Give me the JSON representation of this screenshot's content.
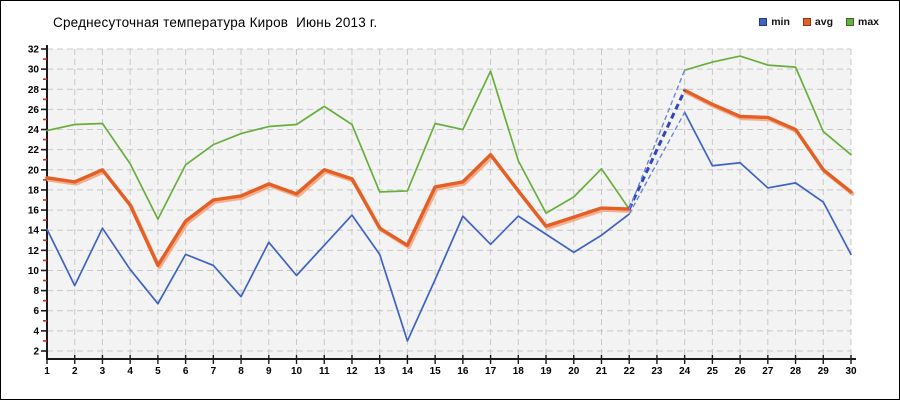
{
  "chart_data": {
    "type": "line",
    "title": "Среднесуточная температура Киров  Июнь 2013 г.",
    "xlabel": "",
    "ylabel": "",
    "x": [
      1,
      2,
      3,
      4,
      5,
      6,
      7,
      8,
      9,
      10,
      11,
      12,
      13,
      14,
      15,
      16,
      17,
      18,
      19,
      20,
      21,
      22,
      23,
      24,
      25,
      26,
      27,
      28,
      29,
      30
    ],
    "x_tick_labels": [
      "1",
      "2",
      "3",
      "4",
      "5",
      "6",
      "7",
      "8",
      "9",
      "10",
      "11",
      "12",
      "13",
      "14",
      "15",
      "16",
      "17",
      "18",
      "19",
      "20",
      "21",
      "22",
      "23",
      "24",
      "25",
      "26",
      "27",
      "28",
      "29",
      "30"
    ],
    "ylim": [
      2,
      32
    ],
    "y_tick_step": 2,
    "y_tick_labels": [
      "2",
      "4",
      "6",
      "8",
      "10",
      "12",
      "14",
      "16",
      "18",
      "20",
      "22",
      "24",
      "26",
      "28",
      "30",
      "32"
    ],
    "grid": true,
    "legend_position": "top-right",
    "missing_x": [
      23
    ],
    "gap_note": "day 23 has no data; gap bridged by blue dashed connector lines",
    "series": [
      {
        "name": "min",
        "color": "#3E63C4",
        "values": [
          14.1,
          8.5,
          14.2,
          10.1,
          6.7,
          11.6,
          10.5,
          7.4,
          12.8,
          9.5,
          12.5,
          15.5,
          11.6,
          3.0,
          9.1,
          15.4,
          12.6,
          15.4,
          13.6,
          11.8,
          13.5,
          15.6,
          null,
          25.7,
          20.4,
          20.7,
          18.2,
          18.7,
          16.8,
          11.6
        ]
      },
      {
        "name": "avg",
        "color": "#E45F25",
        "halo_color": "#F4A983",
        "values": [
          19.2,
          18.8,
          20.0,
          16.5,
          10.5,
          14.9,
          17.0,
          17.4,
          18.6,
          17.6,
          20.0,
          19.1,
          14.2,
          12.5,
          18.3,
          18.8,
          21.5,
          17.9,
          14.4,
          15.3,
          16.2,
          16.1,
          null,
          27.9,
          26.5,
          25.3,
          25.2,
          24.0,
          20.0,
          17.8
        ]
      },
      {
        "name": "max",
        "color": "#67AF3C",
        "values": [
          23.9,
          24.5,
          24.6,
          20.6,
          15.1,
          20.5,
          22.5,
          23.6,
          24.3,
          24.5,
          26.3,
          24.5,
          17.8,
          17.9,
          24.6,
          24.0,
          29.8,
          20.9,
          15.7,
          17.3,
          20.1,
          16.1,
          null,
          29.9,
          30.7,
          31.3,
          30.4,
          30.2,
          23.8,
          21.5
        ]
      }
    ],
    "colors": {
      "plot_background": "#F3F3F3",
      "grid": "#C8C8C8",
      "axis": "#1A1A1A",
      "minor_tick": "#CC2B1E",
      "gap_connector_thin": "#6E86D8",
      "gap_connector_thick": "#3246BE",
      "text": "#000000"
    }
  }
}
